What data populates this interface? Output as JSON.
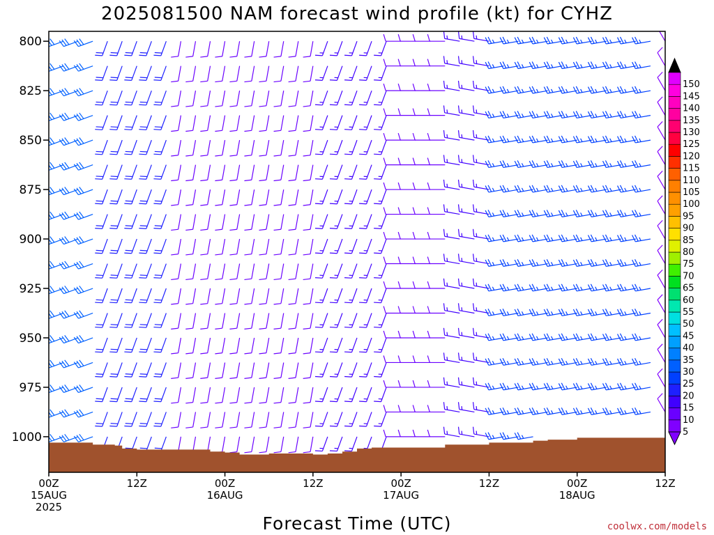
{
  "chart_data": {
    "type": "wind-barb-profile",
    "title": "2025081500 NAM forecast wind profile (kt) for CYHZ",
    "xlabel": "Forecast Time (UTC)",
    "ylabel": "",
    "y_axis": {
      "unit": "hPa",
      "range": [
        795,
        1018
      ],
      "ticks": [
        800,
        825,
        850,
        875,
        900,
        925,
        950,
        975,
        1000
      ]
    },
    "x_axis": {
      "range_hours": [
        0,
        84
      ],
      "ticks": [
        {
          "hour": 0,
          "lines": [
            "00Z",
            "15AUG",
            "2025"
          ]
        },
        {
          "hour": 12,
          "lines": [
            "12Z"
          ]
        },
        {
          "hour": 24,
          "lines": [
            "00Z",
            "16AUG"
          ]
        },
        {
          "hour": 36,
          "lines": [
            "12Z"
          ]
        },
        {
          "hour": 48,
          "lines": [
            "00Z",
            "17AUG"
          ]
        },
        {
          "hour": 60,
          "lines": [
            "12Z"
          ]
        },
        {
          "hour": 72,
          "lines": [
            "00Z",
            "18AUG"
          ]
        },
        {
          "hour": 84,
          "lines": [
            "12Z"
          ]
        }
      ]
    },
    "surface_pressure": {
      "hours": [
        0,
        6,
        9,
        10,
        12,
        18,
        22,
        24,
        26,
        30,
        36,
        38,
        40,
        42,
        44,
        48,
        54,
        60,
        66,
        68,
        72,
        78,
        84
      ],
      "hPa": [
        1003,
        1004,
        1004.5,
        1006,
        1006.5,
        1006.5,
        1007.5,
        1008,
        1009,
        1008.5,
        1009,
        1008.5,
        1007.5,
        1006,
        1005.5,
        1005.5,
        1004,
        1003,
        1002,
        1001.5,
        1000.5,
        1000.5,
        1001.5
      ],
      "color": "#a0522d"
    },
    "wind_regimes": [
      {
        "from_hour": 0,
        "to_hour": 6,
        "dir_deg": 250,
        "speed_kt": 30
      },
      {
        "from_hour": 8,
        "to_hour": 16,
        "dir_deg": 200,
        "speed_kt": 20
      },
      {
        "from_hour": 16,
        "to_hour": 36,
        "dir_deg": 190,
        "speed_kt": 12
      },
      {
        "from_hour": 36,
        "to_hour": 46,
        "dir_deg": 200,
        "speed_kt": 15
      },
      {
        "from_hour": 46,
        "to_hour": 54,
        "dir_deg": 270,
        "speed_kt": 12
      },
      {
        "from_hour": 54,
        "to_hour": 60,
        "dir_deg": 280,
        "speed_kt": 15
      },
      {
        "from_hour": 60,
        "to_hour": 82,
        "dir_deg": 260,
        "speed_kt": 25
      },
      {
        "from_hour": 82,
        "to_hour": 84,
        "dir_deg": 330,
        "speed_kt": 8
      }
    ],
    "colorbar": {
      "labels": [
        5,
        10,
        15,
        20,
        25,
        30,
        35,
        40,
        45,
        50,
        55,
        60,
        65,
        70,
        75,
        80,
        85,
        90,
        95,
        100,
        105,
        110,
        115,
        120,
        125,
        130,
        135,
        140,
        145,
        150
      ],
      "colors": [
        "#8000ff",
        "#6a00ff",
        "#4000ff",
        "#1e20ff",
        "#0040ff",
        "#0060ff",
        "#0080ff",
        "#00a0ff",
        "#00c0ff",
        "#00e0e0",
        "#00e8b0",
        "#00e070",
        "#00e020",
        "#40f000",
        "#a0f000",
        "#e0f000",
        "#ffe000",
        "#ffc000",
        "#ffa000",
        "#ff9000",
        "#ff8000",
        "#ff6000",
        "#ff3000",
        "#ff0000",
        "#ff0040",
        "#ff0070",
        "#ff00a0",
        "#ff00c0",
        "#ff00e0",
        "#e000ff"
      ],
      "min_color": "#8000ff",
      "max_color": "#000000"
    }
  },
  "credit": "coolwx.com/models"
}
